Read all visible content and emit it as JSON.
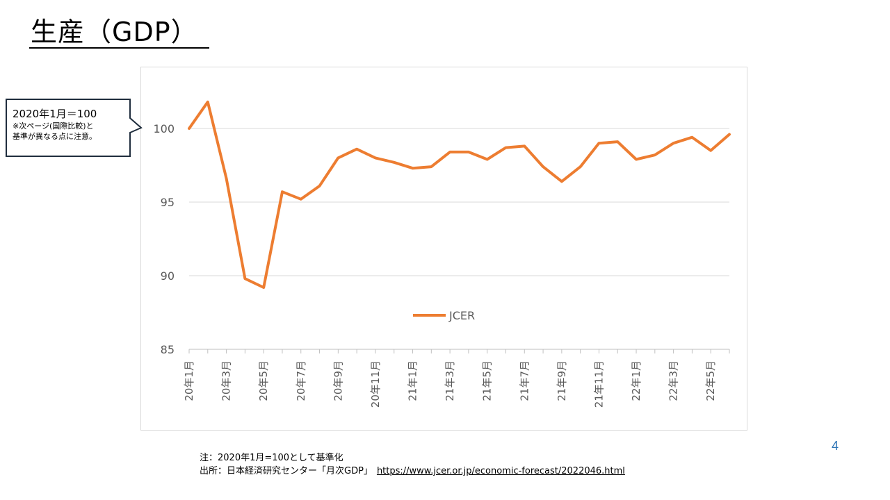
{
  "slide": {
    "title": "生産（GDP）",
    "page_number": "4"
  },
  "callout": {
    "main": "2020年1月＝100",
    "note_line1": "※次ページ(国際比較)と",
    "note_line2": "基準が異なる点に注意。"
  },
  "footnote": {
    "note": "注：2020年1月=100として基準化",
    "source_prefix": "出所：日本経済研究センター「月次GDP」",
    "source_url": "https://www.jcer.or.jp/economic-forecast/2022046.html"
  },
  "colors": {
    "series": "#ed7d31",
    "grid": "#d9d9d9",
    "axis_text": "#595959",
    "page_number": "#2e75b6"
  },
  "chart_data": {
    "type": "line",
    "title": "",
    "xlabel": "",
    "ylabel": "",
    "ylim": [
      85,
      102
    ],
    "yticks": [
      85,
      90,
      95,
      100
    ],
    "grid": true,
    "legend_position": "center-bottom",
    "x": [
      "20年1月",
      "20年2月",
      "20年3月",
      "20年4月",
      "20年5月",
      "20年6月",
      "20年7月",
      "20年8月",
      "20年9月",
      "20年10月",
      "20年11月",
      "20年12月",
      "21年1月",
      "21年2月",
      "21年3月",
      "21年4月",
      "21年5月",
      "21年6月",
      "21年7月",
      "21年8月",
      "21年9月",
      "21年10月",
      "21年11月",
      "21年12月",
      "22年1月",
      "22年2月",
      "22年3月",
      "22年4月",
      "22年5月",
      "22年6月"
    ],
    "xtick_labels": [
      "20年1月",
      "",
      "20年3月",
      "",
      "20年5月",
      "",
      "20年7月",
      "",
      "20年9月",
      "",
      "20年11月",
      "",
      "21年1月",
      "",
      "21年3月",
      "",
      "21年5月",
      "",
      "21年7月",
      "",
      "21年9月",
      "",
      "21年11月",
      "",
      "22年1月",
      "",
      "22年3月",
      "",
      "22年5月",
      ""
    ],
    "series": [
      {
        "name": "JCER",
        "values": [
          100.0,
          101.8,
          96.6,
          89.8,
          89.2,
          95.7,
          95.2,
          96.1,
          98.0,
          98.6,
          98.0,
          97.7,
          97.3,
          97.4,
          98.4,
          98.4,
          97.9,
          98.7,
          98.8,
          97.4,
          96.4,
          97.4,
          99.0,
          99.1,
          97.9,
          98.2,
          99.0,
          99.4,
          98.5,
          99.6
        ]
      }
    ]
  }
}
